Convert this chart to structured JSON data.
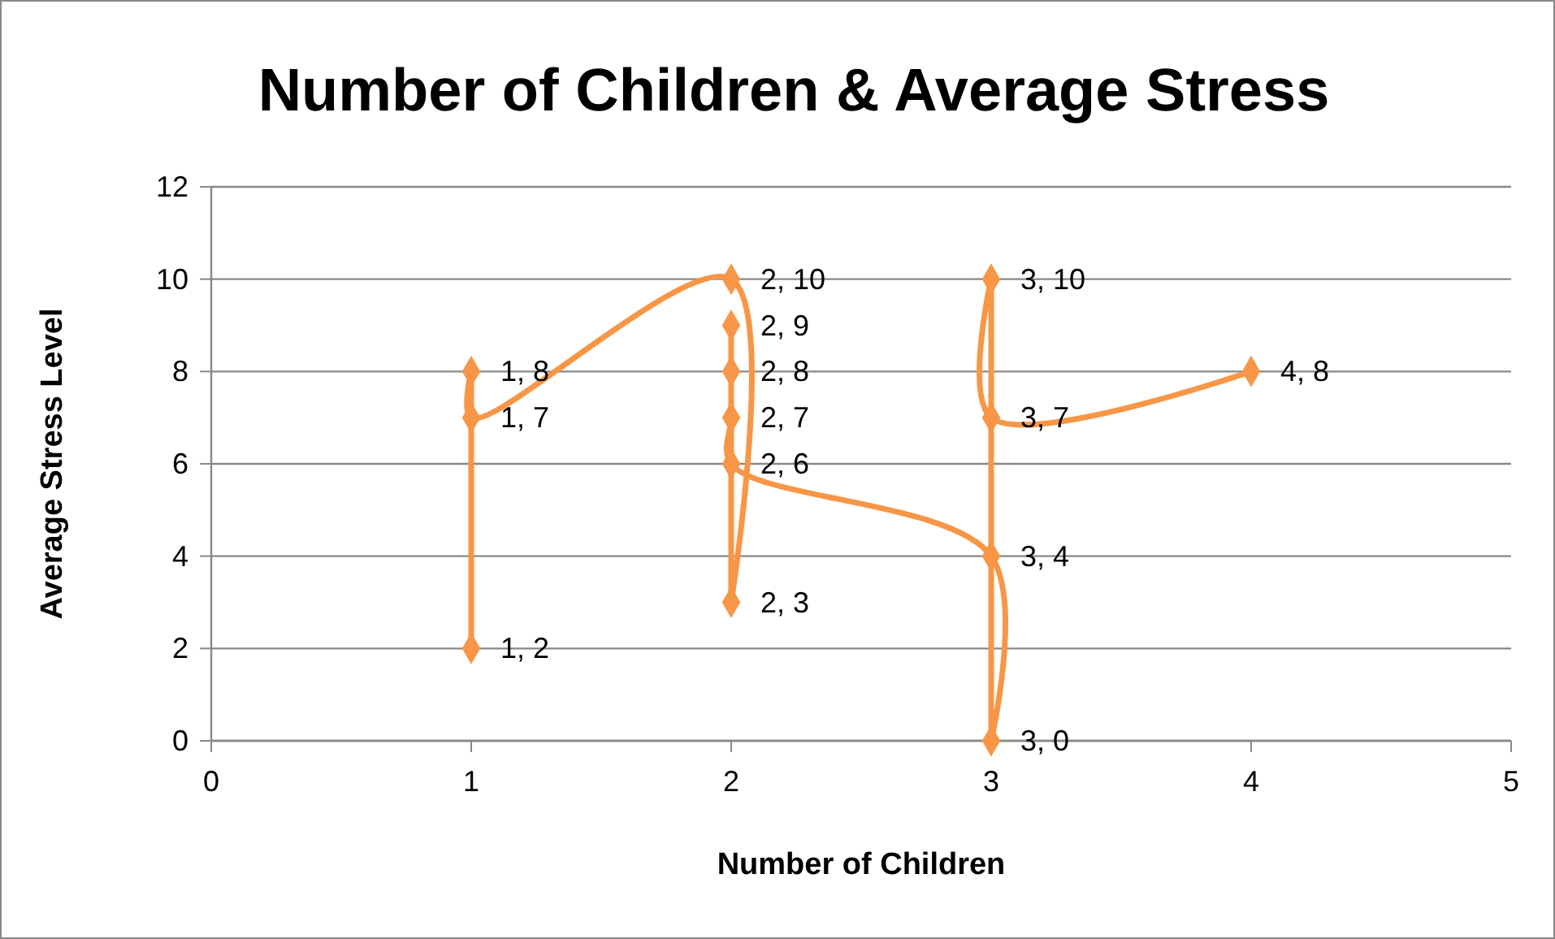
{
  "chart_data": {
    "type": "line",
    "title": "Number of Children & Average Stress",
    "xlabel": "Number of Children",
    "ylabel": "Average Stress Level",
    "x": [
      1,
      1,
      1,
      2,
      2,
      2,
      2,
      2,
      2,
      3,
      3,
      3,
      3,
      4
    ],
    "series": [
      {
        "color": "#f79646",
        "values": [
          2,
          8,
          7,
          10,
          3,
          9,
          8,
          7,
          6,
          4,
          0,
          10,
          7,
          8
        ],
        "value_labels": [
          "1, 2",
          "1, 8",
          "1, 7",
          "2, 10",
          "2, 3",
          "2, 9",
          "2, 8",
          "2, 7",
          "2, 6",
          "3, 4",
          "3, 0",
          "3, 10",
          "3, 7",
          "4, 8"
        ]
      }
    ],
    "xlim": [
      0,
      5
    ],
    "xticks": [
      0,
      1,
      2,
      3,
      4,
      5
    ],
    "ylim": [
      0,
      12
    ],
    "yticks": [
      0,
      2,
      4,
      6,
      8,
      10,
      12
    ],
    "grid": "y",
    "marker": "diamond",
    "line_style": "solid"
  }
}
